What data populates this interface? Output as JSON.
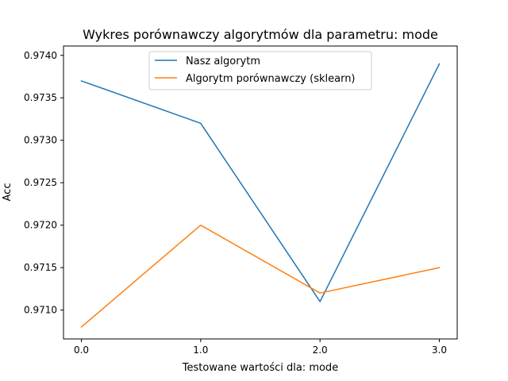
{
  "chart_data": {
    "type": "line",
    "title": "Wykres porównawczy algorytmów dla parametru: mode",
    "xlabel": "Testowane wartości dla: mode",
    "ylabel": "Acc",
    "x": [
      0.0,
      1.0,
      2.0,
      3.0
    ],
    "xticks": [
      "0.0",
      "1.0",
      "2.0",
      "3.0"
    ],
    "xlim": [
      -0.15,
      3.15
    ],
    "ylim": [
      0.97066,
      0.97411
    ],
    "yticks": [
      "0.9710",
      "0.9715",
      "0.9720",
      "0.9725",
      "0.9730",
      "0.9735",
      "0.9740"
    ],
    "ytick_values": [
      0.971,
      0.9715,
      0.972,
      0.9725,
      0.973,
      0.9735,
      0.974
    ],
    "grid": false,
    "legend_position": "top-center",
    "series": [
      {
        "name": "Nasz algorytm",
        "color": "#1f77b4",
        "values": [
          0.9737,
          0.9732,
          0.9711,
          0.9739
        ]
      },
      {
        "name": "Algorytm porównawczy (sklearn)",
        "color": "#ff7f0e",
        "values": [
          0.9708,
          0.972,
          0.9712,
          0.9715
        ]
      }
    ]
  }
}
